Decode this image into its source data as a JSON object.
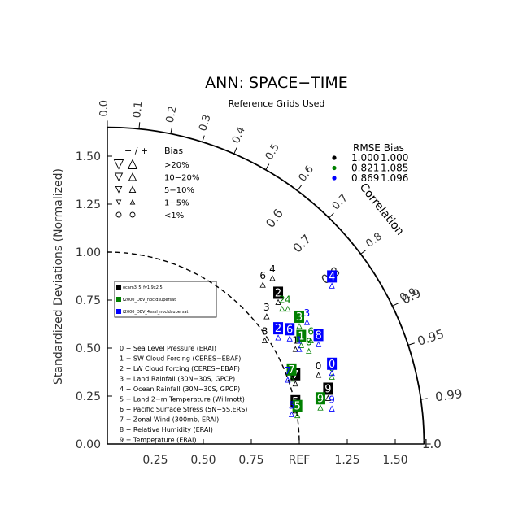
{
  "chart_data": {
    "type": "scatter",
    "title": "ANN: SPACE−TIME",
    "subtitle": "Reference Grids Used",
    "ylabel": "Standardized Deviations (Normalized)",
    "correlation_label": "Correlation",
    "x_ticks": [
      "0.25",
      "0.50",
      "0.75",
      "REF",
      "1.25",
      "1.50"
    ],
    "y_ticks": [
      "0.00",
      "0.25",
      "0.50",
      "0.75",
      "1.00",
      "1.25",
      "1.50"
    ],
    "inner_corr_ticks": [
      "0.0",
      "0.1",
      "0.2",
      "0.3",
      "0.4",
      "0.5",
      "0.6",
      "0.7",
      "0.8",
      "0.9"
    ],
    "outer_corr_labels": [
      "0.6",
      "0.7",
      "0.8",
      "0.9",
      "0.95",
      "0.99",
      "1.0"
    ],
    "rmse_header": "RMSE  Bias",
    "rmse_rows": [
      {
        "color": "#000000",
        "rmse": "1.000",
        "bias": "1.000"
      },
      {
        "color": "#008000",
        "rmse": "0.821",
        "bias": "1.085"
      },
      {
        "color": "#0000ff",
        "rmse": "0.869",
        "bias": "1.096"
      }
    ],
    "bias_legend": {
      "header_signs": "− / +",
      "header_word": "Bias",
      "rows": [
        ">20%",
        "10−20%",
        "5−10%",
        "1−5%",
        "<1%"
      ]
    },
    "cases": [
      {
        "name": "ocam3_5_fv1.9x2.5",
        "color": "#000000"
      },
      {
        "name": "f2000_DEV_nocldsupersat",
        "color": "#008000"
      },
      {
        "name": "f2000_DEV_4essl_nocldsupersat",
        "color": "#0000ff"
      }
    ],
    "variables": [
      "0 − Sea Level Pressure (ERAI)",
      "1 − SW Cloud Forcing (CERES−EBAF)",
      "2 − LW Cloud Forcing (CERES−EBAF)",
      "3 − Land Rainfall (30N−30S, GPCP)",
      "4 − Ocean Rainfall (30N−30S, GPCP)",
      "5 − Land 2−m Temperature (Willmott)",
      "6 − Pacific Surface Stress (5N−5S,ERS)",
      "7 − Zonal Wind (300mb, ERAI)",
      "8 − Relative Humidity (ERAI)",
      "9 − Temperature (ERAI)"
    ],
    "points": [
      {
        "case": 0,
        "var": "0",
        "x": 1.1,
        "y": 0.385
      },
      {
        "case": 1,
        "var": "0",
        "x": 1.17,
        "y": 0.375
      },
      {
        "case": 2,
        "var": "0",
        "x": 1.17,
        "y": 0.395
      },
      {
        "case": 0,
        "var": "1",
        "x": 0.98,
        "y": 0.52
      },
      {
        "case": 1,
        "var": "1",
        "x": 1.01,
        "y": 0.54
      },
      {
        "case": 2,
        "var": "1",
        "x": 1.0,
        "y": 0.52
      },
      {
        "case": 0,
        "var": "2",
        "x": 0.89,
        "y": 0.765
      },
      {
        "case": 1,
        "var": "2",
        "x": 0.91,
        "y": 0.73
      },
      {
        "case": 2,
        "var": "2",
        "x": 0.89,
        "y": 0.58
      },
      {
        "case": 0,
        "var": "3",
        "x": 0.83,
        "y": 0.69
      },
      {
        "case": 1,
        "var": "3",
        "x": 1.0,
        "y": 0.64
      },
      {
        "case": 2,
        "var": "3",
        "x": 1.04,
        "y": 0.66
      },
      {
        "case": 0,
        "var": "4",
        "x": 0.86,
        "y": 0.89
      },
      {
        "case": 1,
        "var": "4",
        "x": 0.94,
        "y": 0.73
      },
      {
        "case": 2,
        "var": "4",
        "x": 1.17,
        "y": 0.85
      },
      {
        "case": 0,
        "var": "5",
        "x": 0.98,
        "y": 0.2
      },
      {
        "case": 1,
        "var": "5",
        "x": 0.99,
        "y": 0.175
      },
      {
        "case": 2,
        "var": "5",
        "x": 0.96,
        "y": 0.18
      },
      {
        "case": 0,
        "var": "6",
        "x": 0.81,
        "y": 0.855
      },
      {
        "case": 1,
        "var": "6",
        "x": 1.06,
        "y": 0.565
      },
      {
        "case": 2,
        "var": "6",
        "x": 0.95,
        "y": 0.575
      },
      {
        "case": 0,
        "var": "7",
        "x": 0.98,
        "y": 0.34
      },
      {
        "case": 1,
        "var": "7",
        "x": 0.96,
        "y": 0.365
      },
      {
        "case": 2,
        "var": "7",
        "x": 0.94,
        "y": 0.36
      },
      {
        "case": 0,
        "var": "8",
        "x": 0.82,
        "y": 0.565
      },
      {
        "case": 1,
        "var": "8",
        "x": 1.05,
        "y": 0.51
      },
      {
        "case": 2,
        "var": "8",
        "x": 1.1,
        "y": 0.545
      },
      {
        "case": 0,
        "var": "9",
        "x": 1.15,
        "y": 0.265
      },
      {
        "case": 1,
        "var": "9",
        "x": 1.11,
        "y": 0.215
      },
      {
        "case": 2,
        "var": "9",
        "x": 1.17,
        "y": 0.21
      }
    ]
  }
}
